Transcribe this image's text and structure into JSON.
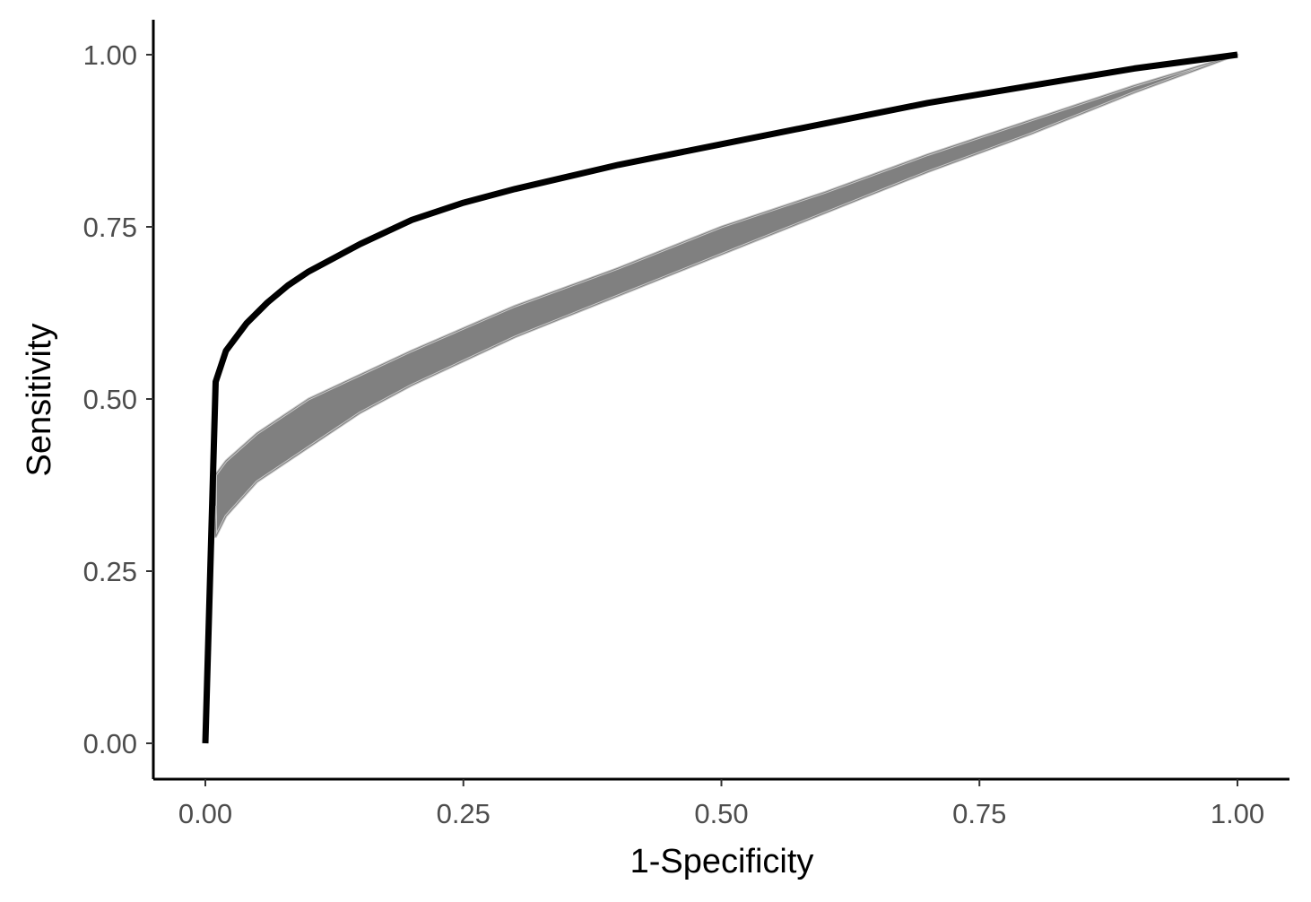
{
  "chart_data": {
    "type": "line",
    "title": "",
    "xlabel": "1-Specificity",
    "ylabel": "Sensitivity",
    "xlim": [
      0,
      1
    ],
    "ylim": [
      0,
      1
    ],
    "x_ticks": [
      "0.00",
      "0.25",
      "0.50",
      "0.75",
      "1.00"
    ],
    "y_ticks": [
      "0.00",
      "0.25",
      "0.50",
      "0.75",
      "1.00"
    ],
    "grid": false,
    "legend": "none",
    "colors": {
      "main": "#000000",
      "band": "#808080",
      "band_edge": "#c8c8c8",
      "axis": "#000000",
      "tick_text": "#4d4d4d"
    },
    "band": {
      "description_color": "#808080",
      "upper": [
        [
          0.01,
          0.39
        ],
        [
          0.02,
          0.41
        ],
        [
          0.05,
          0.45
        ],
        [
          0.1,
          0.5
        ],
        [
          0.15,
          0.535
        ],
        [
          0.2,
          0.57
        ],
        [
          0.3,
          0.635
        ],
        [
          0.4,
          0.69
        ],
        [
          0.5,
          0.75
        ],
        [
          0.6,
          0.8
        ],
        [
          0.7,
          0.855
        ],
        [
          0.8,
          0.905
        ],
        [
          0.9,
          0.955
        ],
        [
          1.0,
          1.0
        ]
      ],
      "lower": [
        [
          0.01,
          0.3
        ],
        [
          0.02,
          0.33
        ],
        [
          0.05,
          0.38
        ],
        [
          0.1,
          0.43
        ],
        [
          0.15,
          0.48
        ],
        [
          0.2,
          0.52
        ],
        [
          0.3,
          0.59
        ],
        [
          0.4,
          0.65
        ],
        [
          0.5,
          0.71
        ],
        [
          0.6,
          0.77
        ],
        [
          0.7,
          0.83
        ],
        [
          0.8,
          0.885
        ],
        [
          0.9,
          0.945
        ],
        [
          1.0,
          1.0
        ]
      ]
    },
    "series": [
      {
        "values": [
          [
            0.0,
            0.0
          ],
          [
            0.01,
            0.525
          ],
          [
            0.02,
            0.57
          ],
          [
            0.04,
            0.61
          ],
          [
            0.06,
            0.64
          ],
          [
            0.08,
            0.665
          ],
          [
            0.1,
            0.685
          ],
          [
            0.15,
            0.725
          ],
          [
            0.2,
            0.76
          ],
          [
            0.25,
            0.785
          ],
          [
            0.3,
            0.805
          ],
          [
            0.4,
            0.84
          ],
          [
            0.5,
            0.87
          ],
          [
            0.6,
            0.9
          ],
          [
            0.7,
            0.93
          ],
          [
            0.8,
            0.955
          ],
          [
            0.9,
            0.98
          ],
          [
            1.0,
            1.0
          ]
        ]
      }
    ]
  }
}
